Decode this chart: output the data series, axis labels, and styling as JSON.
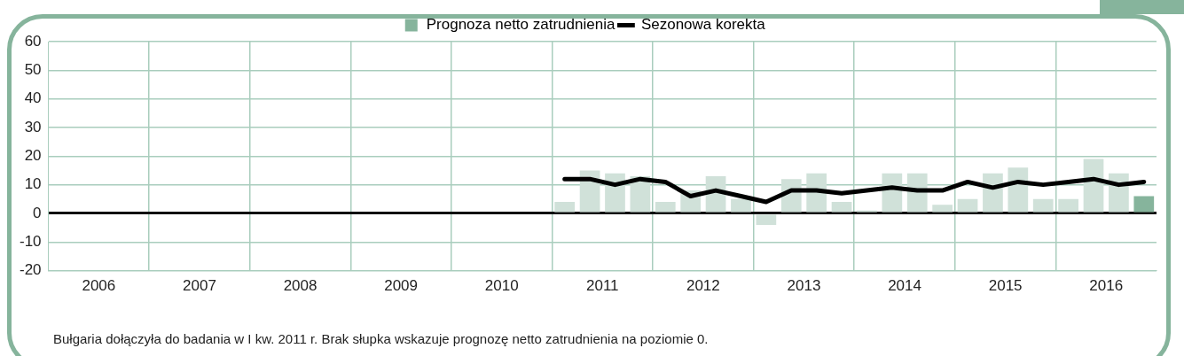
{
  "chart_data": {
    "type": "bar",
    "x": [
      2011.125,
      2011.375,
      2011.625,
      2011.875,
      2012.125,
      2012.375,
      2012.625,
      2012.875,
      2013.125,
      2013.375,
      2013.625,
      2013.875,
      2014.125,
      2014.375,
      2014.625,
      2014.875,
      2015.125,
      2015.375,
      2015.625,
      2015.875,
      2016.125,
      2016.375,
      2016.625,
      2016.875
    ],
    "xlim": [
      2006,
      2017
    ],
    "xticks": [
      {
        "value": 2006.5,
        "label": "2006"
      },
      {
        "value": 2007,
        "label": null
      },
      {
        "value": 2007.5,
        "label": "2007"
      },
      {
        "value": 2008,
        "label": null
      },
      {
        "value": 2008.5,
        "label": "2008"
      },
      {
        "value": 2009,
        "label": null
      },
      {
        "value": 2009.5,
        "label": "2009"
      },
      {
        "value": 2010,
        "label": null
      },
      {
        "value": 2010.5,
        "label": "2010"
      },
      {
        "value": 2011,
        "label": null
      },
      {
        "value": 2011.5,
        "label": "2011"
      },
      {
        "value": 2012,
        "label": null
      },
      {
        "value": 2012.5,
        "label": "2012"
      },
      {
        "value": 2013,
        "label": null
      },
      {
        "value": 2013.5,
        "label": "2013"
      },
      {
        "value": 2014,
        "label": null
      },
      {
        "value": 2014.5,
        "label": "2014"
      },
      {
        "value": 2015,
        "label": null
      },
      {
        "value": 2015.5,
        "label": "2015"
      },
      {
        "value": 2016,
        "label": null
      },
      {
        "value": 2016.5,
        "label": "2016"
      }
    ],
    "series": [
      {
        "name": "Prognoza netto zatrudnienia",
        "color": "#86b49c",
        "colors": [
          "#d0e1d9",
          "#d0e1d9",
          "#d0e1d9",
          "#d0e1d9",
          "#d0e1d9",
          "#d0e1d9",
          "#d0e1d9",
          "#d0e1d9",
          "#d0e1d9",
          "#d0e1d9",
          "#d0e1d9",
          "#d0e1d9",
          "#d0e1d9",
          "#d0e1d9",
          "#d0e1d9",
          "#d0e1d9",
          "#d0e1d9",
          "#d0e1d9",
          "#d0e1d9",
          "#d0e1d9",
          "#d0e1d9",
          "#d0e1d9",
          "#d0e1d9",
          "#86b49c"
        ],
        "values": [
          4,
          15,
          14,
          13,
          4,
          8,
          13,
          5,
          -4,
          12,
          14,
          4,
          1,
          14,
          14,
          3,
          5,
          14,
          16,
          5,
          5,
          19,
          14,
          6
        ]
      },
      {
        "name": "Sezonowa korekta",
        "type": "line",
        "color": "#000000",
        "values": [
          12,
          12,
          10,
          12,
          11,
          6,
          8,
          6,
          4,
          8,
          8,
          7,
          8,
          9,
          8,
          8,
          11,
          9,
          11,
          10,
          11,
          12,
          10,
          11
        ]
      }
    ],
    "ylim": [
      -20,
      60
    ],
    "yticks": [
      -20,
      -10,
      0,
      10,
      20,
      30,
      40,
      50,
      60
    ],
    "grid": true,
    "legend": "top",
    "marker": "none",
    "line_style": "solid",
    "annotations": [
      "Bułgaria dołączyła do badania w I kw. 2011 r. Brak słupka wskazuje prognozę netto zatrudnienia na poziomie 0."
    ]
  }
}
